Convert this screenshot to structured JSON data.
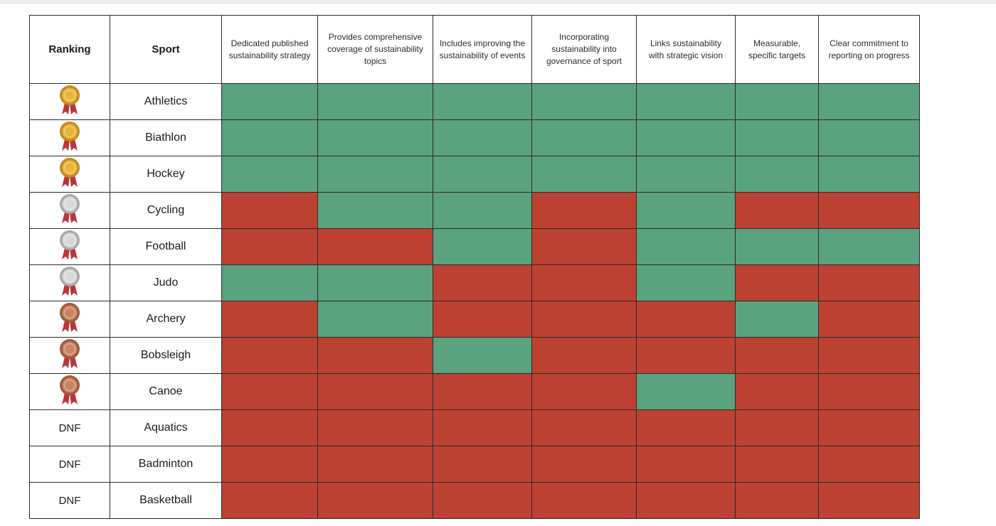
{
  "chart_data": {
    "type": "table",
    "columns": {
      "ranking": "Ranking",
      "sport": "Sport",
      "criteria": [
        "Dedicated published sustainability strategy",
        "Provides comprehensive coverage of sustainability topics",
        "Includes improving the sustainability of events",
        "Incorporating sustainability into governance of sport",
        "Links sustainability with strategic vision",
        "Measurable, specific targets",
        "Clear commitment to reporting on progress"
      ]
    },
    "medal_colors": {
      "gold": {
        "fill": "#e9b53a",
        "rim": "#c48a1f",
        "ribbon": "#b8363a"
      },
      "silver": {
        "fill": "#d8d8d8",
        "rim": "#a9a9a9",
        "ribbon": "#b8363a"
      },
      "bronze": {
        "fill": "#c98462",
        "rim": "#9f5a3c",
        "ribbon": "#b8363a"
      }
    },
    "cell_colors": {
      "yes": "#5ba27e",
      "no": "#bd4133"
    },
    "rows": [
      {
        "medal": "gold",
        "rank": "",
        "sport": "Athletics",
        "values": [
          1,
          1,
          1,
          1,
          1,
          1,
          1
        ]
      },
      {
        "medal": "gold",
        "rank": "",
        "sport": "Biathlon",
        "values": [
          1,
          1,
          1,
          1,
          1,
          1,
          1
        ]
      },
      {
        "medal": "gold",
        "rank": "",
        "sport": "Hockey",
        "values": [
          1,
          1,
          1,
          1,
          1,
          1,
          1
        ]
      },
      {
        "medal": "silver",
        "rank": "",
        "sport": "Cycling",
        "values": [
          0,
          1,
          1,
          0,
          1,
          0,
          0
        ]
      },
      {
        "medal": "silver",
        "rank": "",
        "sport": "Football",
        "values": [
          0,
          0,
          1,
          0,
          1,
          1,
          1
        ]
      },
      {
        "medal": "silver",
        "rank": "",
        "sport": "Judo",
        "values": [
          1,
          1,
          0,
          0,
          1,
          0,
          0
        ]
      },
      {
        "medal": "bronze",
        "rank": "",
        "sport": "Archery",
        "values": [
          0,
          1,
          0,
          0,
          0,
          1,
          0
        ]
      },
      {
        "medal": "bronze",
        "rank": "",
        "sport": "Bobsleigh",
        "values": [
          0,
          0,
          1,
          0,
          0,
          0,
          0
        ]
      },
      {
        "medal": "bronze",
        "rank": "",
        "sport": "Canoe",
        "values": [
          0,
          0,
          0,
          0,
          1,
          0,
          0
        ]
      },
      {
        "medal": "",
        "rank": "DNF",
        "sport": "Aquatics",
        "values": [
          0,
          0,
          0,
          0,
          0,
          0,
          0
        ]
      },
      {
        "medal": "",
        "rank": "DNF",
        "sport": "Badminton",
        "values": [
          0,
          0,
          0,
          0,
          0,
          0,
          0
        ]
      },
      {
        "medal": "",
        "rank": "DNF",
        "sport": "Basketball",
        "values": [
          0,
          0,
          0,
          0,
          0,
          0,
          0
        ]
      }
    ]
  }
}
